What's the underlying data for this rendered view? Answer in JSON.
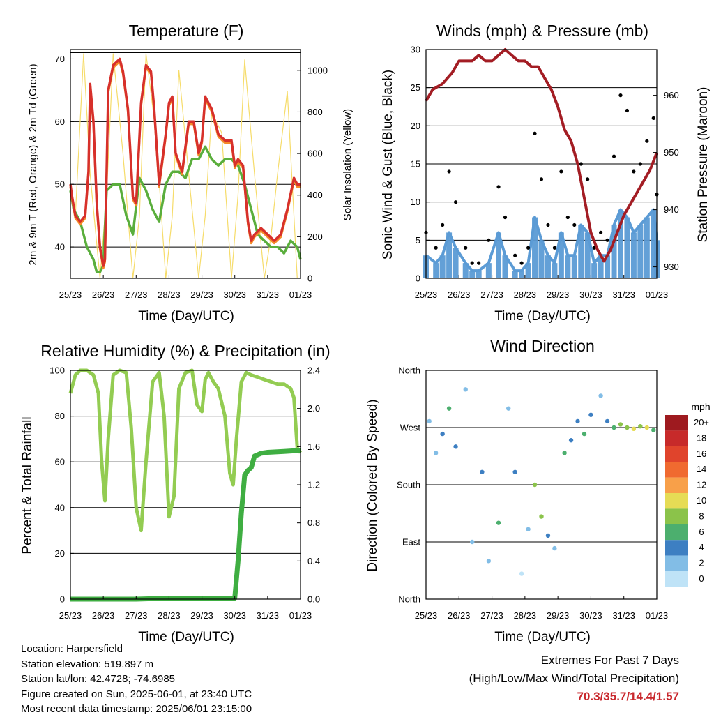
{
  "x_tick_labels": [
    "25/23",
    "26/23",
    "27/23",
    "28/23",
    "29/23",
    "30/23",
    "31/23",
    "01/23"
  ],
  "x_axis_title": "Time (Day/UTC)",
  "colors": {
    "temp_red": "#d7302b",
    "temp_orange": "#f48a2a",
    "dewpoint_green": "#5aae3c",
    "insolation_yellow": "#f6dc6a",
    "gust_black": "#000000",
    "wind_blue": "#5b9bd5",
    "pressure_maroon": "#a31d24",
    "rh_lightgreen": "#93cc52",
    "precip_green": "#3fae42",
    "extremes_red": "#c8262b"
  },
  "panels": {
    "temperature": {
      "title": "Temperature (F)",
      "ylabel_left": "2m & 9m T (Red, Orange) & 2m Td (Green)",
      "ylabel_right": "Solar Insolation (Yellow)",
      "y_ticks": [
        "40",
        "50",
        "60",
        "70"
      ],
      "y_right_ticks": [
        "0",
        "200",
        "400",
        "600",
        "800",
        "1000"
      ]
    },
    "winds": {
      "title": "Winds (mph) & Pressure (mb)",
      "ylabel_left": "Sonic Wind & Gust (Blue, Black)",
      "ylabel_right": "Station Pressure (Maroon)",
      "y_ticks": [
        "0",
        "5",
        "10",
        "15",
        "20",
        "25",
        "30"
      ],
      "y_right_ticks": [
        "930",
        "940",
        "950",
        "960"
      ]
    },
    "humidity": {
      "title": "Relative Humidity (%) & Precipitation (in)",
      "ylabel_left": "Percent & Total Rainfall",
      "y_ticks": [
        "0",
        "20",
        "40",
        "60",
        "80",
        "100"
      ],
      "y_right_ticks": [
        "0.0",
        "0.4",
        "0.8",
        "1.2",
        "1.6",
        "2.0",
        "2.4"
      ]
    },
    "direction": {
      "title": "Wind Direction",
      "ylabel_left": "Direction (Colored By Speed)",
      "y_ticks": [
        "North",
        "East",
        "South",
        "West",
        "North"
      ],
      "legend_unit": "mph",
      "legend_labels": [
        "20+",
        "18",
        "16",
        "14",
        "12",
        "10",
        "8",
        "6",
        "4",
        "2",
        "0"
      ],
      "legend_colors": [
        "#9e1a1f",
        "#c72a2a",
        "#e0442c",
        "#f06a30",
        "#f8a049",
        "#e6dc55",
        "#8bc34a",
        "#4caf6e",
        "#3d7fc2",
        "#82bde6",
        "#bfe3f7"
      ]
    }
  },
  "info": {
    "location": "Location: Harpersfield",
    "elevation": "Station elevation: 519.897 m",
    "latlon": "Station lat/lon: 42.4728; -74.6985",
    "created": "Figure created on Sun, 2025-06-01, at 23:40 UTC",
    "timestamp": "Most recent data timestamp: 2025/06/01 23:15:00"
  },
  "extremes": {
    "title": "Extremes For Past 7 Days",
    "subtitle": "(High/Low/Max Wind/Total Precipitation)",
    "values": "70.3/35.7/14.4/1.57"
  },
  "chart_data": [
    {
      "type": "line",
      "title": "Temperature (F)",
      "xlabel": "Time (Day/UTC)",
      "ylabel": "2m & 9m T (Red, Orange) & 2m Td (Green)",
      "ylabel_right": "Solar Insolation (Yellow)",
      "ylim": [
        35,
        71.5
      ],
      "ylim_right": [
        0,
        1100
      ],
      "grid": true,
      "series": [
        {
          "name": "2m T",
          "axis": "left",
          "color": "#d7302b",
          "x": [
            0,
            0.05,
            0.15,
            0.3,
            0.45,
            0.55,
            0.6,
            0.7,
            0.8,
            0.9,
            1.0,
            1.05,
            1.15,
            1.3,
            1.5,
            1.6,
            1.75,
            1.9,
            2.0,
            2.15,
            2.3,
            2.45,
            2.55,
            2.7,
            2.9,
            3.0,
            3.1,
            3.2,
            3.4,
            3.6,
            3.75,
            3.9,
            4.0,
            4.1,
            4.3,
            4.5,
            4.7,
            4.9,
            5.0,
            5.1,
            5.25,
            5.4,
            5.5,
            5.6,
            5.8,
            6.0,
            6.2,
            6.4,
            6.6,
            6.8,
            6.9,
            7.0
          ],
          "y": [
            50,
            48,
            45,
            44,
            45,
            52,
            66,
            60,
            47,
            40,
            37,
            38,
            65,
            69,
            70,
            68,
            62,
            48,
            47,
            63,
            69,
            68,
            62,
            50,
            58,
            63,
            64,
            55,
            52,
            60,
            60,
            55,
            57,
            64,
            62,
            58,
            57,
            57,
            53,
            54,
            53,
            44,
            41,
            42,
            43,
            42,
            41,
            42,
            46,
            51,
            50,
            50
          ]
        },
        {
          "name": "2m Td",
          "axis": "left",
          "color": "#5aae3c",
          "x": [
            0,
            0.1,
            0.3,
            0.5,
            0.7,
            0.8,
            0.9,
            1.0,
            1.1,
            1.3,
            1.5,
            1.7,
            1.9,
            2.1,
            2.3,
            2.5,
            2.7,
            2.9,
            3.1,
            3.3,
            3.5,
            3.7,
            3.9,
            4.1,
            4.3,
            4.5,
            4.7,
            4.9,
            5.1,
            5.3,
            5.5,
            5.7,
            5.9,
            6.1,
            6.3,
            6.5,
            6.7,
            6.9,
            7.0
          ],
          "y": [
            49,
            46,
            44,
            40,
            38,
            36,
            36,
            37,
            49,
            50,
            50,
            45,
            42,
            51,
            49,
            46,
            44,
            50,
            52,
            52,
            51,
            54,
            54,
            56,
            54,
            53,
            54,
            54,
            53,
            50,
            46,
            42,
            41,
            40,
            40,
            39,
            41,
            40,
            38
          ]
        },
        {
          "name": "Solar Insolation",
          "axis": "right",
          "color": "#f6dc6a",
          "x": [
            0.15,
            0.4,
            0.6,
            0.9,
            1.1,
            1.3,
            1.6,
            1.9,
            2.1,
            2.3,
            2.6,
            2.9,
            3.1,
            3.3,
            3.6,
            3.9,
            4.1,
            4.3,
            4.6,
            4.9,
            5.1,
            5.3,
            5.6,
            5.9,
            6.1,
            6.3,
            6.6,
            6.9
          ],
          "y": [
            300,
            1080,
            500,
            0,
            400,
            1080,
            600,
            0,
            300,
            1080,
            700,
            0,
            300,
            1000,
            500,
            0,
            300,
            800,
            700,
            0,
            400,
            1050,
            500,
            0,
            200,
            500,
            900,
            0
          ]
        }
      ]
    },
    {
      "type": "scatter",
      "title": "Winds (mph) & Pressure (mb)",
      "xlabel": "Time (Day/UTC)",
      "ylabel": "Sonic Wind & Gust (Blue, Black)",
      "ylabel_right": "Station Pressure (Maroon)",
      "ylim": [
        0,
        30
      ],
      "ylim_right": [
        928,
        968
      ],
      "grid": true,
      "series": [
        {
          "name": "Sonic Wind",
          "axis": "left",
          "color": "#5b9bd5",
          "x": [
            0,
            0.3,
            0.5,
            0.7,
            0.9,
            1.2,
            1.4,
            1.6,
            1.9,
            2.2,
            2.4,
            2.7,
            2.9,
            3.1,
            3.3,
            3.5,
            3.7,
            3.9,
            4.1,
            4.3,
            4.5,
            4.7,
            4.9,
            5.1,
            5.3,
            5.5,
            5.7,
            5.9,
            6.1,
            6.3,
            6.5,
            6.7,
            6.9,
            7.0
          ],
          "y": [
            3,
            2,
            3,
            6,
            4,
            2,
            1,
            1,
            2,
            6,
            3,
            1,
            1,
            2,
            8,
            5,
            3,
            2,
            6,
            3,
            3,
            7,
            6,
            2,
            3,
            3,
            7,
            9,
            8,
            6,
            7,
            8,
            9,
            5
          ]
        },
        {
          "name": "Gust",
          "axis": "left",
          "color": "#000000",
          "x": [
            0,
            0.3,
            0.5,
            0.7,
            0.9,
            1.2,
            1.4,
            1.6,
            1.9,
            2.2,
            2.4,
            2.7,
            2.9,
            3.1,
            3.3,
            3.5,
            3.7,
            3.9,
            4.1,
            4.3,
            4.5,
            4.7,
            4.9,
            5.1,
            5.3,
            5.5,
            5.7,
            5.9,
            6.1,
            6.3,
            6.5,
            6.7,
            6.9,
            7.0
          ],
          "y": [
            6,
            4,
            7,
            14,
            10,
            4,
            2,
            2,
            5,
            12,
            8,
            3,
            2,
            4,
            19,
            13,
            7,
            4,
            14,
            8,
            7,
            15,
            13,
            4,
            6,
            5,
            16,
            24,
            22,
            14,
            15,
            18,
            21,
            11
          ]
        },
        {
          "name": "Station Pressure",
          "axis": "right",
          "color": "#a31d24",
          "x": [
            0,
            0.2,
            0.5,
            0.8,
            1.0,
            1.2,
            1.4,
            1.6,
            1.8,
            2.0,
            2.2,
            2.4,
            2.6,
            2.8,
            3.0,
            3.2,
            3.4,
            3.6,
            3.8,
            4.0,
            4.2,
            4.4,
            4.6,
            4.8,
            5.0,
            5.2,
            5.4,
            5.6,
            5.8,
            6.0,
            6.2,
            6.4,
            6.6,
            6.8,
            7.0
          ],
          "y": [
            959,
            961,
            962,
            964,
            966,
            966,
            966,
            967,
            966,
            966,
            967,
            968,
            967,
            966,
            966,
            965,
            965,
            963,
            961,
            958,
            954,
            952,
            948,
            942,
            936,
            933,
            931,
            933,
            936,
            939,
            941,
            943,
            945,
            947,
            950
          ]
        }
      ]
    },
    {
      "type": "line",
      "title": "Relative Humidity (%) & Precipitation (in)",
      "xlabel": "Time (Day/UTC)",
      "ylabel": "Percent & Total Rainfall",
      "ylim": [
        0,
        100
      ],
      "ylim_right": [
        0,
        2.4
      ],
      "grid": true,
      "series": [
        {
          "name": "Relative Humidity",
          "axis": "left",
          "color": "#93cc52",
          "x": [
            0,
            0.15,
            0.3,
            0.5,
            0.7,
            0.85,
            0.95,
            1.05,
            1.15,
            1.3,
            1.5,
            1.7,
            1.85,
            2.0,
            2.15,
            2.3,
            2.5,
            2.7,
            2.85,
            3.0,
            3.15,
            3.3,
            3.5,
            3.7,
            3.85,
            4.0,
            4.1,
            4.2,
            4.35,
            4.5,
            4.7,
            4.85,
            4.95,
            5.05,
            5.2,
            5.35,
            5.5,
            5.7,
            5.9,
            6.1,
            6.3,
            6.5,
            6.7,
            6.8,
            6.9,
            7.0
          ],
          "y": [
            90,
            98,
            100,
            100,
            98,
            90,
            60,
            43,
            70,
            98,
            100,
            99,
            75,
            40,
            30,
            60,
            95,
            99,
            80,
            36,
            45,
            92,
            99,
            100,
            85,
            82,
            96,
            99,
            95,
            92,
            80,
            55,
            50,
            70,
            95,
            99,
            98,
            97,
            96,
            95,
            94,
            94,
            92,
            88,
            66,
            64
          ]
        },
        {
          "name": "Total Precipitation",
          "axis": "right",
          "color": "#3fae42",
          "x": [
            0,
            1,
            2,
            3,
            4,
            5.0,
            5.1,
            5.2,
            5.3,
            5.4,
            5.5,
            5.6,
            5.8,
            6.0,
            6.5,
            7.0
          ],
          "y": [
            0,
            0,
            0,
            0.01,
            0.01,
            0.01,
            0.4,
            0.9,
            1.3,
            1.35,
            1.38,
            1.5,
            1.53,
            1.54,
            1.55,
            1.56
          ]
        }
      ]
    },
    {
      "type": "scatter",
      "title": "Wind Direction",
      "xlabel": "Time (Day/UTC)",
      "ylabel": "Direction (Colored By Speed)",
      "ylim": [
        0,
        360
      ],
      "y_tick_labels": [
        "North",
        "East",
        "South",
        "West",
        "North"
      ],
      "legend_title": "mph",
      "series": [
        {
          "name": "Wind Direction",
          "x": [
            0.1,
            0.3,
            0.5,
            0.7,
            0.9,
            1.2,
            1.4,
            1.7,
            1.9,
            2.2,
            2.5,
            2.7,
            2.9,
            3.1,
            3.3,
            3.5,
            3.7,
            3.9,
            4.2,
            4.4,
            4.6,
            4.8,
            5.0,
            5.3,
            5.5,
            5.7,
            5.9,
            6.1,
            6.3,
            6.5,
            6.7,
            6.9
          ],
          "y": [
            280,
            230,
            260,
            300,
            240,
            330,
            90,
            200,
            60,
            120,
            300,
            200,
            40,
            110,
            180,
            130,
            100,
            80,
            230,
            250,
            280,
            260,
            290,
            320,
            280,
            270,
            275,
            270,
            268,
            272,
            270,
            266
          ],
          "speed": [
            2,
            3,
            4,
            6,
            4,
            3,
            2,
            5,
            3,
            6,
            2,
            5,
            1,
            3,
            9,
            8,
            4,
            2,
            6,
            5,
            4,
            6,
            5,
            2,
            4,
            6,
            9,
            9,
            10,
            8,
            10,
            7
          ]
        }
      ]
    }
  ]
}
